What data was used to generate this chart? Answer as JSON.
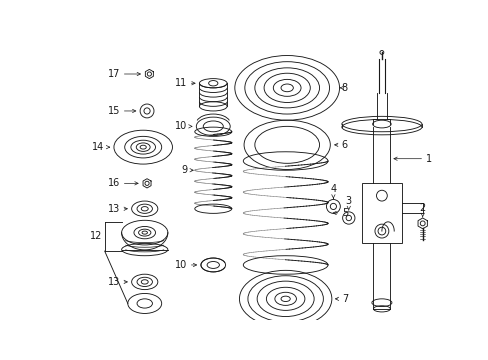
{
  "bg_color": "#ffffff",
  "line_color": "#1a1a1a",
  "fig_width": 4.89,
  "fig_height": 3.6,
  "dpi": 100,
  "lw": 0.65,
  "fs": 7.0
}
